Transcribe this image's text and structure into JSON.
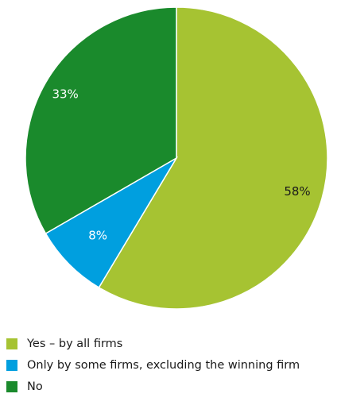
{
  "chart_data": {
    "type": "pie",
    "title": "",
    "slices": [
      {
        "name": "Yes – by all firms",
        "value": 58,
        "label": "58%",
        "color": "#a6c332",
        "label_color": "#1a1a1a"
      },
      {
        "name": "Only by some firms, excluding the winning firm",
        "value": 8,
        "label": "8%",
        "color": "#009fdf",
        "label_color": "#ffffff"
      },
      {
        "name": "No",
        "value": 33,
        "label": "33%",
        "color": "#1a8a2c",
        "label_color": "#ffffff"
      }
    ],
    "start_angle": "12 o'clock",
    "direction": "clockwise",
    "legend_position": "bottom-left"
  }
}
